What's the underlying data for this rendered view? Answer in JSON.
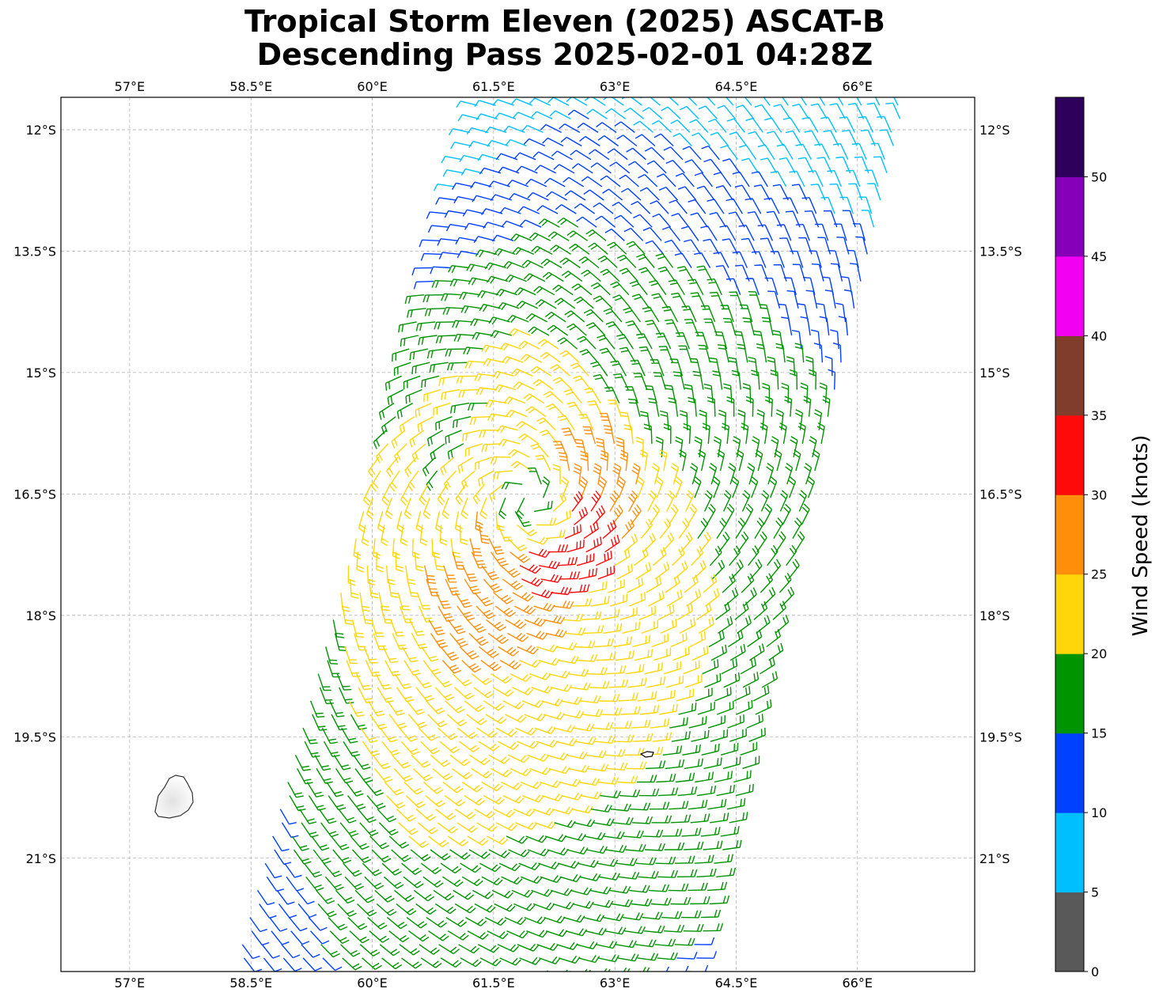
{
  "title_line1": "Tropical Storm Eleven (2025) ASCAT-B",
  "title_line2": "Descending Pass 2025-02-01 04:28Z",
  "lon_ticks": [
    "57°E",
    "58.5°E",
    "60°E",
    "61.5°E",
    "63°E",
    "64.5°E",
    "66°E"
  ],
  "lat_ticks": [
    "12°S",
    "13.5°S",
    "15°S",
    "16.5°S",
    "18°S",
    "19.5°S",
    "21°S"
  ],
  "colorbar": {
    "label": "Wind Speed (knots)",
    "tick_labels": [
      "0",
      "5",
      "10",
      "15",
      "20",
      "25",
      "30",
      "35",
      "40",
      "45",
      "50"
    ],
    "bins": [
      {
        "range": "0-5",
        "color": "#595959"
      },
      {
        "range": "5-10",
        "color": "#00bfff"
      },
      {
        "range": "10-15",
        "color": "#0040ff"
      },
      {
        "range": "15-20",
        "color": "#009400"
      },
      {
        "range": "20-25",
        "color": "#ffd60a"
      },
      {
        "range": "25-30",
        "color": "#ff8f0a"
      },
      {
        "range": "30-35",
        "color": "#ff0a0a"
      },
      {
        "range": "35-40",
        "color": "#803d2b"
      },
      {
        "range": "40-45",
        "color": "#f200f2"
      },
      {
        "range": "45-50",
        "color": "#8500b8"
      },
      {
        "range": "50+",
        "color": "#2e005c"
      }
    ]
  },
  "map": {
    "extent": {
      "lon_min": 56.15,
      "lon_max": 67.45,
      "lat_min": -22.4,
      "lat_max": -11.6
    },
    "storm_center": {
      "lon": 61.9,
      "lat": -16.55
    },
    "swath": {
      "northwest_corner": {
        "lon": 61.3,
        "lat": -11.7
      },
      "southwest_corner": {
        "lon": 58.3,
        "lat": -22.4
      },
      "northeast_corner": {
        "lon": 66.5,
        "lat": -11.7
      },
      "southeast_corner": {
        "lon": 63.9,
        "lat": -22.4
      }
    },
    "islands": [
      "mauritius-island",
      "tromelin-island"
    ],
    "gridlines": true
  }
}
